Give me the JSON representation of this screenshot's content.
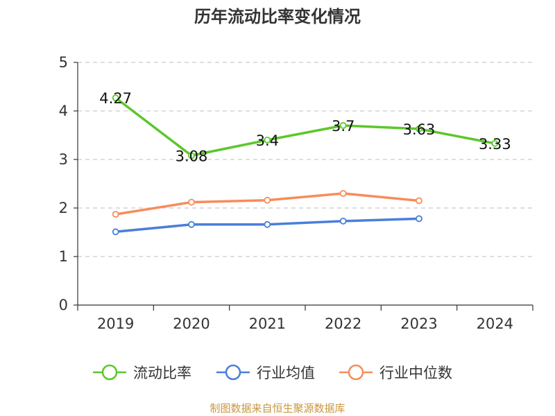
{
  "chart_data": {
    "type": "line",
    "title": "历年流动比率变化情况",
    "categories": [
      "2019",
      "2020",
      "2021",
      "2022",
      "2023",
      "2024"
    ],
    "ylim": [
      0,
      5
    ],
    "yticks": [
      0,
      1,
      2,
      3,
      4,
      5
    ],
    "grid": true,
    "legend_position": "bottom",
    "series": [
      {
        "name": "流动比率",
        "color": "#5cc72a",
        "values": [
          4.27,
          3.08,
          3.4,
          3.7,
          3.63,
          3.33
        ],
        "labels": [
          "4.27",
          "3.08",
          "3.4",
          "3.7",
          "3.63",
          "3.33"
        ],
        "show_labels": true
      },
      {
        "name": "行业均值",
        "color": "#4a7fd9",
        "values": [
          1.51,
          1.66,
          1.66,
          1.73,
          1.78,
          null
        ],
        "show_labels": false
      },
      {
        "name": "行业中位数",
        "color": "#f78c5a",
        "values": [
          1.87,
          2.12,
          2.16,
          2.3,
          2.15,
          null
        ],
        "show_labels": false
      }
    ],
    "source": "制图数据来自恒生聚源数据库"
  }
}
